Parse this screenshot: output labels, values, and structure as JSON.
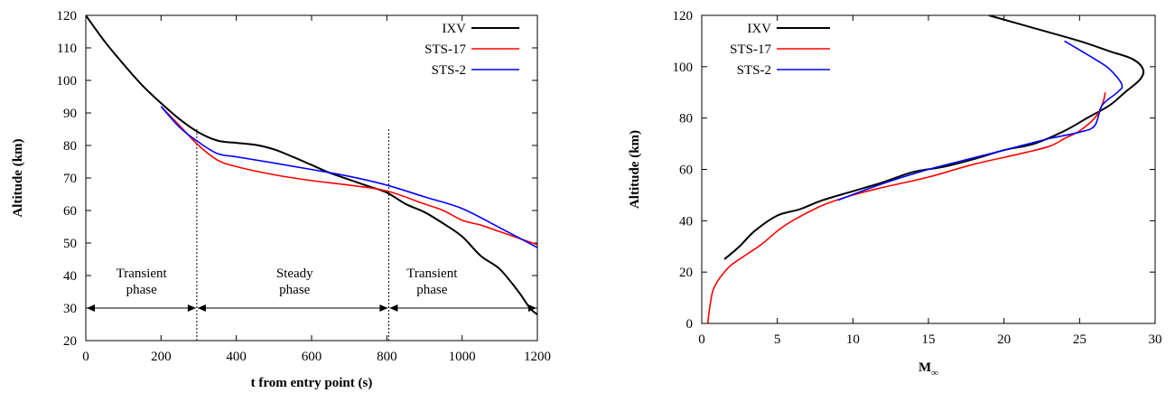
{
  "chart_data": [
    {
      "type": "line",
      "xlabel": "t from entry point (s)",
      "ylabel": "Altitude (km)",
      "xlim": [
        0,
        1200
      ],
      "ylim": [
        20,
        120
      ],
      "xticks": [
        0,
        200,
        400,
        600,
        800,
        1000,
        1200
      ],
      "yticks": [
        20,
        30,
        40,
        50,
        60,
        70,
        80,
        90,
        100,
        110,
        120
      ],
      "legend_position": "top-right",
      "series": [
        {
          "name": "IXV",
          "color": "#000000",
          "x": [
            0,
            50,
            100,
            150,
            200,
            250,
            300,
            350,
            400,
            450,
            500,
            550,
            600,
            650,
            700,
            750,
            800,
            850,
            900,
            950,
            1000,
            1050,
            1100,
            1150,
            1180,
            1200
          ],
          "y": [
            120,
            112,
            105,
            98.5,
            93,
            88,
            84,
            81.5,
            80.8,
            80.2,
            78.8,
            76.5,
            74,
            71.5,
            69.5,
            67.5,
            65.5,
            62,
            59.5,
            56,
            52,
            46,
            42,
            35,
            30,
            28
          ]
        },
        {
          "name": "STS-17",
          "color": "#ff0000",
          "x": [
            200,
            250,
            300,
            350,
            400,
            500,
            600,
            700,
            800,
            900,
            950,
            1000,
            1050,
            1100,
            1150,
            1200
          ],
          "y": [
            92,
            86,
            80,
            75.5,
            73.5,
            71,
            69.2,
            67.8,
            66,
            62,
            60,
            57,
            55.5,
            53.5,
            51.5,
            49.5
          ]
        },
        {
          "name": "STS-2",
          "color": "#0000ff",
          "x": [
            200,
            250,
            300,
            350,
            400,
            500,
            600,
            700,
            800,
            900,
            1000,
            1100,
            1200
          ],
          "y": [
            92,
            85.5,
            81,
            77.5,
            76.5,
            74.6,
            72.6,
            70.5,
            67.8,
            64.2,
            60.6,
            54.7,
            48.6
          ]
        }
      ],
      "phase_boundaries": [
        295,
        805
      ],
      "phase_arrow_y": 30,
      "annotations": [
        {
          "line1": "Transient",
          "line2": "phase",
          "x": 148,
          "y": 38
        },
        {
          "line1": "Steady",
          "line2": "phase",
          "x": 555,
          "y": 38
        },
        {
          "line1": "Transient",
          "line2": "phase",
          "x": 920,
          "y": 38
        }
      ]
    },
    {
      "type": "line",
      "xlabel": "M",
      "xlabel_sub": "∞",
      "ylabel": "Altitude (km)",
      "xlim": [
        0,
        30
      ],
      "ylim": [
        0,
        120
      ],
      "xticks": [
        0,
        5,
        10,
        15,
        20,
        25,
        30
      ],
      "yticks": [
        0,
        20,
        40,
        60,
        80,
        100,
        120
      ],
      "legend_position": "top-left",
      "series": [
        {
          "name": "IXV",
          "color": "#000000",
          "x": [
            1.5,
            2.5,
            3.5,
            5,
            6.5,
            8,
            10,
            12,
            14,
            16,
            18,
            20,
            22,
            24,
            25.5,
            27,
            28,
            29,
            29.2,
            28.5,
            27,
            25,
            22,
            19
          ],
          "y": [
            25,
            30,
            36,
            42,
            44.5,
            48,
            51.5,
            55,
            59,
            61,
            64,
            67.5,
            70,
            75,
            80,
            85,
            90,
            95,
            99,
            103,
            106,
            110,
            115,
            120
          ]
        },
        {
          "name": "STS-17",
          "color": "#ff0000",
          "x": [
            0.4,
            0.5,
            0.7,
            1,
            1.5,
            2,
            3,
            4,
            5,
            6,
            8,
            10,
            12,
            15,
            18,
            21,
            23,
            24,
            25,
            26,
            26.4,
            26.6,
            26.7
          ],
          "y": [
            0,
            5,
            12,
            16,
            20,
            23,
            27,
            31,
            36,
            40,
            46,
            50,
            53,
            57,
            62,
            66,
            69,
            72,
            75,
            80,
            84,
            87,
            90
          ]
        },
        {
          "name": "STS-2",
          "color": "#0000ff",
          "x": [
            9,
            12,
            15,
            18,
            21,
            23,
            25,
            26,
            26.5,
            27.5,
            27.8,
            27,
            26,
            24
          ],
          "y": [
            48,
            54.5,
            60,
            64.5,
            69,
            72,
            74.5,
            77,
            85,
            90,
            93,
            99,
            103,
            110
          ]
        }
      ]
    }
  ]
}
